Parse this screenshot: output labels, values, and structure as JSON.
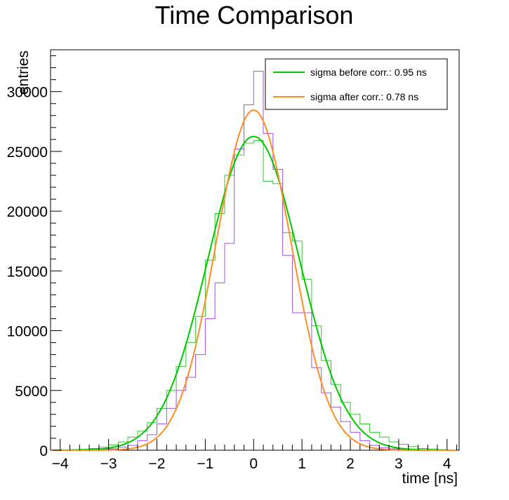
{
  "chart_data": {
    "type": "line",
    "title": "Time Comparison",
    "xlabel": "time [ns]",
    "ylabel": "entries",
    "xlim": [
      -4.2,
      4.25
    ],
    "ylim": [
      0,
      33500
    ],
    "x_ticks": [
      -4,
      -3,
      -2,
      -1,
      0,
      1,
      2,
      3,
      4
    ],
    "x_tick_labels": [
      "−4",
      "−3",
      "−2",
      "−1",
      "0",
      "1",
      "2",
      "3",
      "4"
    ],
    "y_ticks": [
      0,
      5000,
      10000,
      15000,
      20000,
      25000,
      30000
    ],
    "y_tick_labels": [
      "0",
      "5000",
      "10000",
      "15000",
      "20000",
      "25000",
      "30000"
    ],
    "grid": false,
    "legend_position": "top-right",
    "bin_width": 0.2,
    "histograms": [
      {
        "color": "#32c832",
        "bin_centers": [
          -3.9,
          -3.7,
          -3.5,
          -3.3,
          -3.1,
          -2.9,
          -2.7,
          -2.5,
          -2.3,
          -2.1,
          -1.9,
          -1.7,
          -1.5,
          -1.3,
          -1.1,
          -0.9,
          -0.7,
          -0.5,
          -0.3,
          -0.1,
          0.1,
          0.3,
          0.5,
          0.7,
          0.9,
          1.1,
          1.3,
          1.5,
          1.7,
          1.9,
          2.1,
          2.3,
          2.5,
          2.7,
          2.9,
          3.1,
          3.3,
          3.5,
          3.7,
          3.9,
          4.1
        ],
        "values": [
          30,
          50,
          80,
          150,
          250,
          450,
          700,
          1100,
          1600,
          2300,
          3500,
          5000,
          7000,
          9000,
          11200,
          15900,
          19800,
          23000,
          24700,
          25700,
          25900,
          22500,
          22300,
          18200,
          17500,
          14300,
          10400,
          7500,
          5500,
          4000,
          3000,
          2200,
          1500,
          1100,
          700,
          500,
          300,
          150,
          100,
          50,
          30
        ]
      },
      {
        "color": "#a050e6",
        "bin_centers": [
          -3.9,
          -3.7,
          -3.5,
          -3.3,
          -3.1,
          -2.9,
          -2.7,
          -2.5,
          -2.3,
          -2.1,
          -1.9,
          -1.7,
          -1.5,
          -1.3,
          -1.1,
          -0.9,
          -0.7,
          -0.5,
          -0.3,
          -0.1,
          0.1,
          0.3,
          0.5,
          0.7,
          0.9,
          1.1,
          1.3,
          1.5,
          1.7,
          1.9,
          2.1,
          2.3,
          2.5,
          2.7,
          2.9,
          3.1,
          3.3,
          3.5,
          3.7,
          3.9,
          4.1
        ],
        "values": [
          5,
          10,
          20,
          40,
          70,
          120,
          250,
          400,
          800,
          1300,
          2200,
          3500,
          5000,
          6100,
          8000,
          11000,
          14000,
          17300,
          25200,
          28900,
          31700,
          26500,
          23500,
          16300,
          11500,
          11500,
          6900,
          4800,
          3600,
          2400,
          1500,
          800,
          400,
          200,
          120,
          70,
          40,
          20,
          10,
          5,
          5
        ]
      }
    ],
    "series": [
      {
        "name": "sigma before corr.: 0.95 ns",
        "color": "#00c800",
        "function": "gaussian",
        "amplitude": 26250,
        "mean": 0.0,
        "sigma": 0.95
      },
      {
        "name": "sigma after corr.: 0.78 ns",
        "color": "#ff8c28",
        "function": "gaussian",
        "amplitude": 28450,
        "mean": 0.0,
        "sigma": 0.78
      }
    ]
  }
}
